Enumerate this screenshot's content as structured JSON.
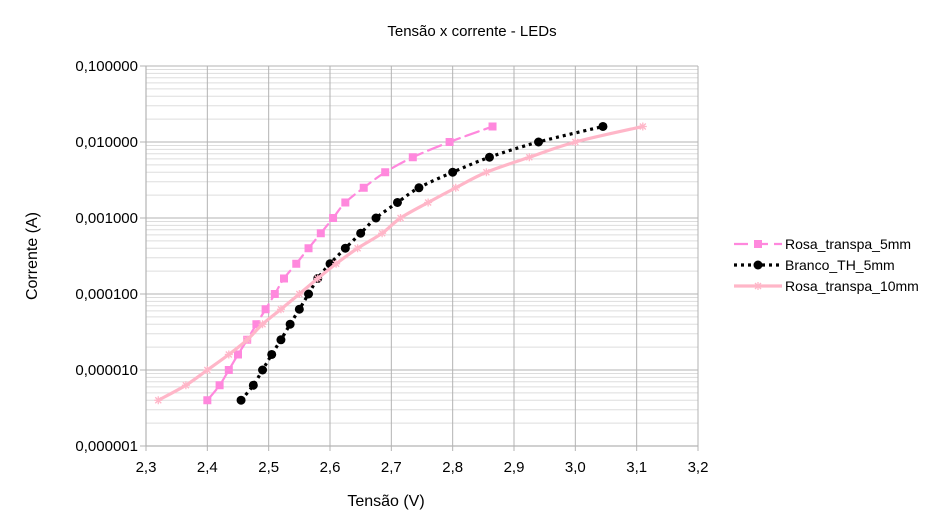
{
  "chart_data": {
    "type": "line",
    "title": "Tensão x corrente - LEDs",
    "xlabel": "Tensão (V)",
    "ylabel": "Corrente (A)",
    "xlim": [
      2.3,
      3.2
    ],
    "ylim": [
      1e-06,
      0.1
    ],
    "yscale": "log",
    "grid": true,
    "legend_position": "right",
    "x_ticks": [
      "2,3",
      "2,4",
      "2,5",
      "2,6",
      "2,7",
      "2,8",
      "2,9",
      "3,0",
      "3,1",
      "3,2"
    ],
    "y_ticks": [
      "0,100000",
      "0,010000",
      "0,001000",
      "0,000100",
      "0,000010",
      "0,000001"
    ],
    "series": [
      {
        "name": "Rosa_transpa_5mm",
        "color": "#ff88dd",
        "line": "dashed",
        "marker": "square",
        "x": [
          2.4,
          2.42,
          2.435,
          2.45,
          2.465,
          2.48,
          2.495,
          2.51,
          2.525,
          2.545,
          2.565,
          2.585,
          2.605,
          2.625,
          2.655,
          2.69,
          2.735,
          2.795,
          2.865
        ],
        "y": [
          4e-06,
          6.3e-06,
          1e-05,
          1.6e-05,
          2.5e-05,
          4e-05,
          6.3e-05,
          0.0001,
          0.00016,
          0.00025,
          0.0004,
          0.00063,
          0.001,
          0.0016,
          0.0025,
          0.004,
          0.0063,
          0.01,
          0.016
        ]
      },
      {
        "name": "Branco_TH_5mm",
        "color": "#000000",
        "line": "dotted",
        "marker": "circle",
        "x": [
          2.455,
          2.475,
          2.49,
          2.505,
          2.52,
          2.535,
          2.55,
          2.565,
          2.58,
          2.6,
          2.625,
          2.65,
          2.675,
          2.71,
          2.745,
          2.8,
          2.86,
          2.94,
          3.045
        ],
        "y": [
          4e-06,
          6.3e-06,
          1e-05,
          1.6e-05,
          2.5e-05,
          4e-05,
          6.3e-05,
          0.0001,
          0.00016,
          0.00025,
          0.0004,
          0.00063,
          0.001,
          0.0016,
          0.0025,
          0.004,
          0.0063,
          0.01,
          0.016
        ]
      },
      {
        "name": "Rosa_transpa_10mm",
        "color": "#ffb6c8",
        "line": "solid",
        "marker": "asterisk",
        "x": [
          2.32,
          2.365,
          2.4,
          2.435,
          2.465,
          2.49,
          2.52,
          2.55,
          2.58,
          2.61,
          2.645,
          2.685,
          2.715,
          2.76,
          2.805,
          2.855,
          2.925,
          3.0,
          3.11
        ],
        "y": [
          4e-06,
          6.3e-06,
          1e-05,
          1.6e-05,
          2.5e-05,
          4e-05,
          6.3e-05,
          0.0001,
          0.00016,
          0.00025,
          0.0004,
          0.00063,
          0.001,
          0.0016,
          0.0025,
          0.004,
          0.0063,
          0.01,
          0.016
        ]
      }
    ]
  },
  "colors": {
    "grid_major": "#b3b3b3",
    "grid_minor": "#dddddd",
    "axis": "#b3b3b3"
  }
}
